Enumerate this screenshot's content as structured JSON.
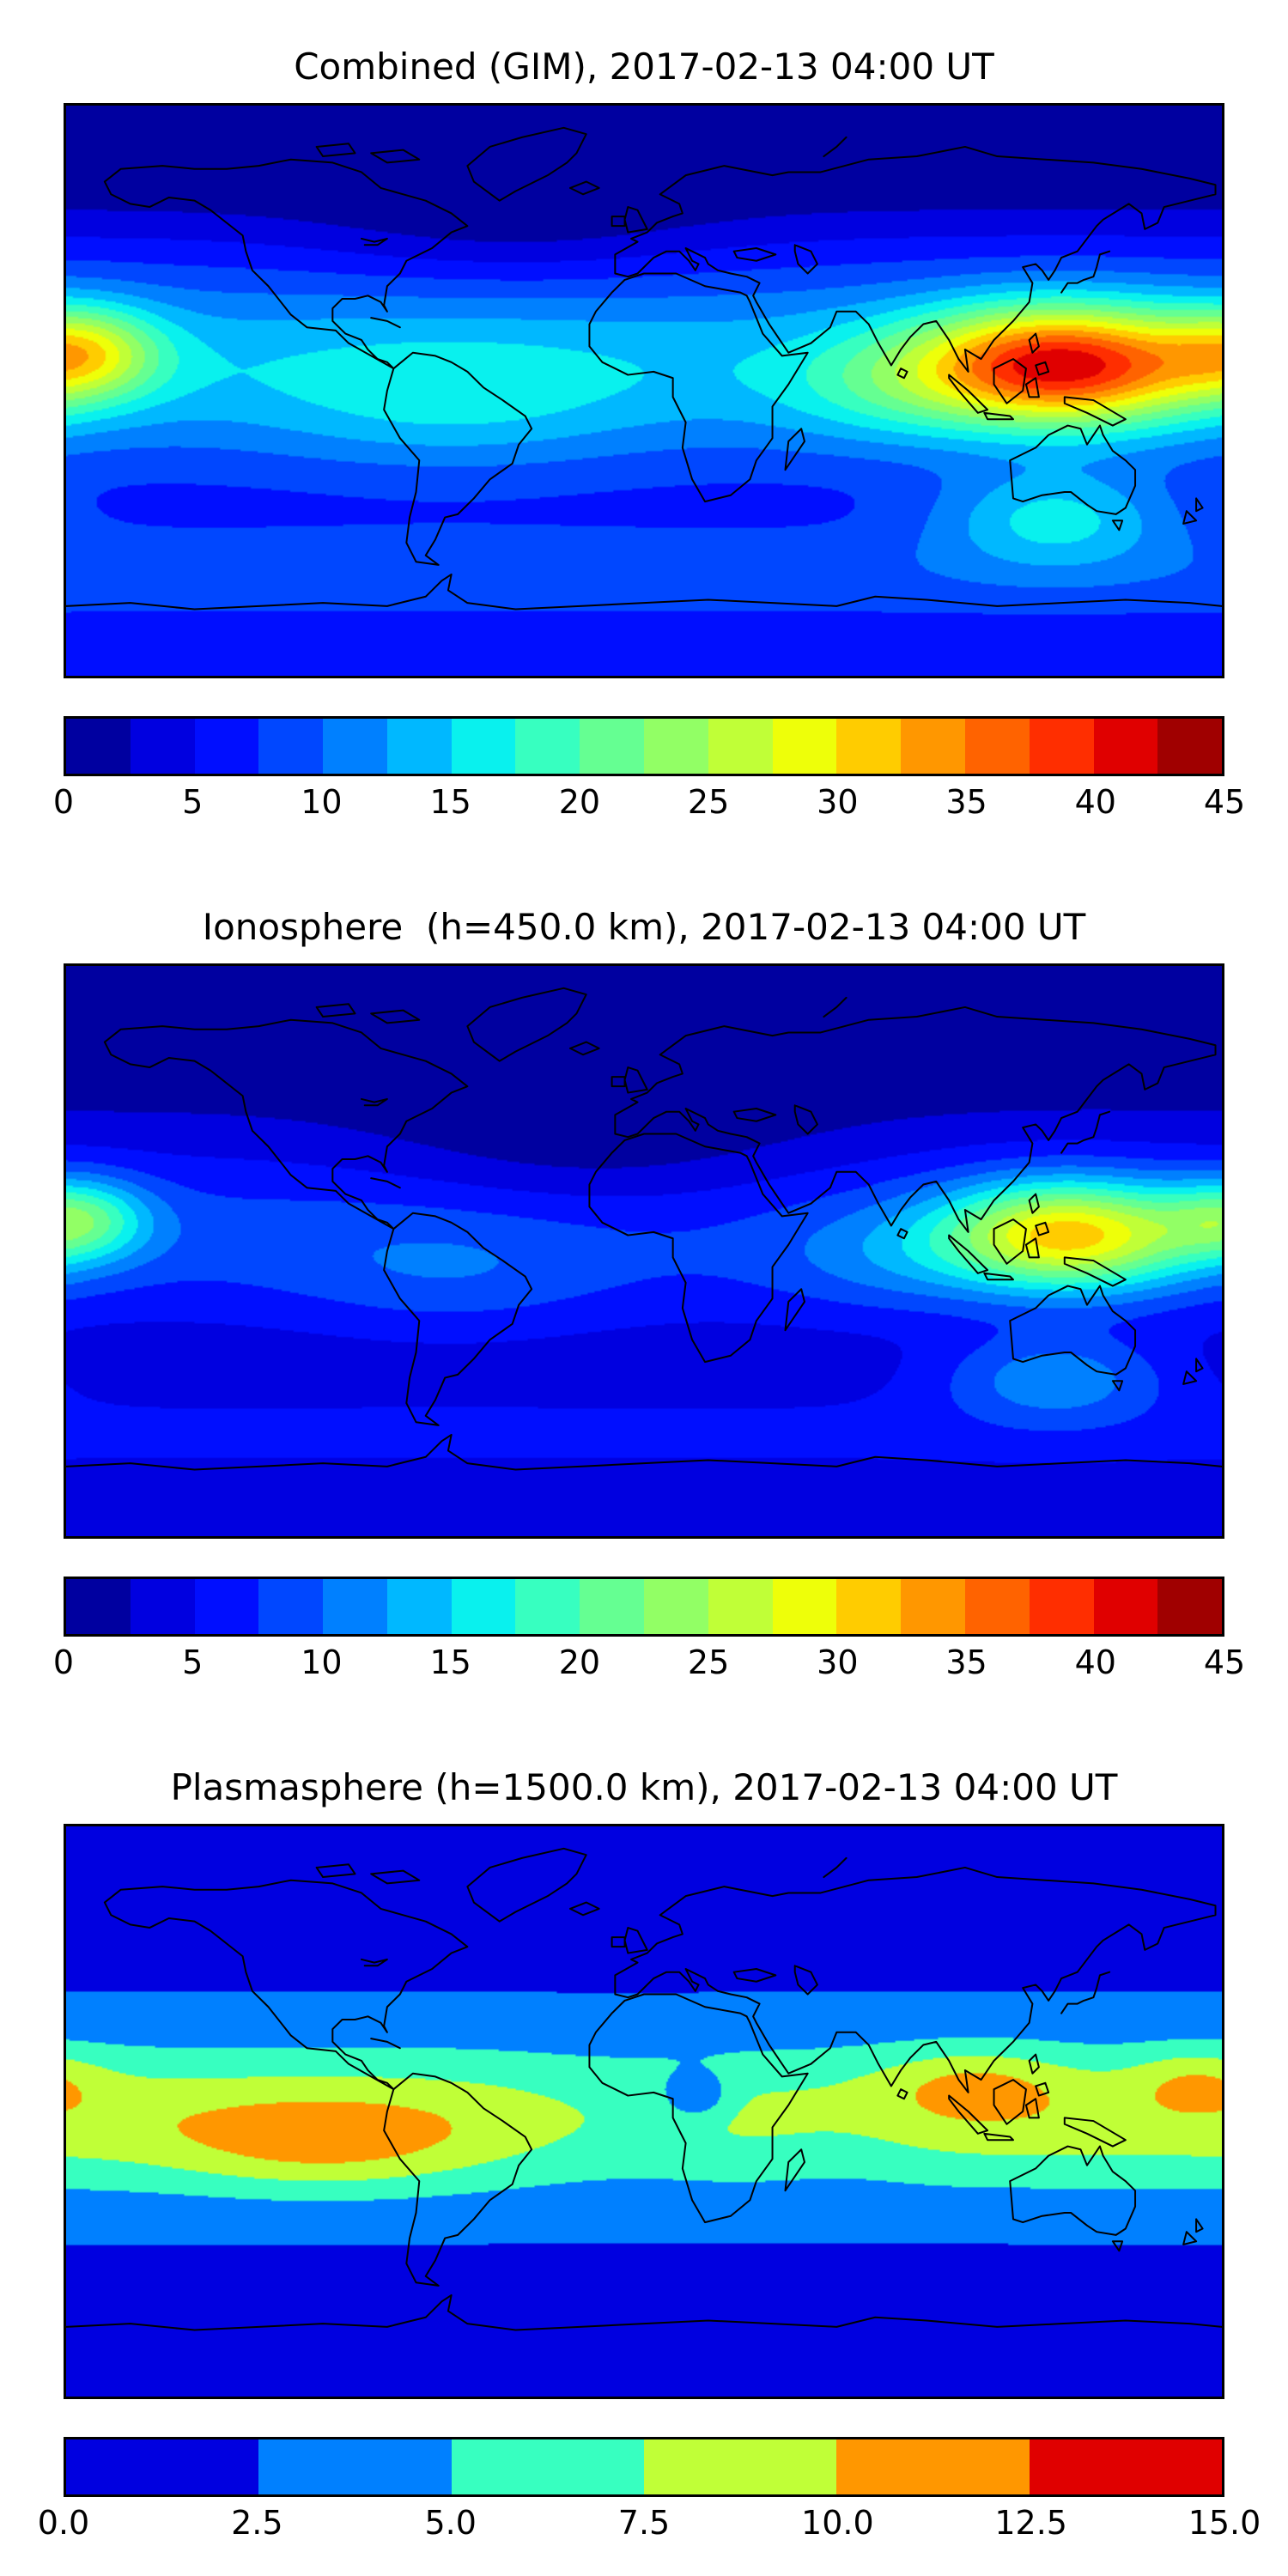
{
  "figure": {
    "background": "#ffffff",
    "panels": [
      {
        "title": "Combined (GIM), 2017-02-13 04:00 UT",
        "colorbar_ticks": [
          "0",
          "5",
          "10",
          "15",
          "20",
          "25",
          "30",
          "35",
          "40",
          "45"
        ]
      },
      {
        "title": "Ionosphere  (h=450.0 km), 2017-02-13 04:00 UT",
        "colorbar_ticks": [
          "0",
          "5",
          "10",
          "15",
          "20",
          "25",
          "30",
          "35",
          "40",
          "45"
        ]
      },
      {
        "title": "Plasmasphere (h=1500.0 km), 2017-02-13 04:00 UT",
        "colorbar_ticks": [
          "0.0",
          "2.5",
          "5.0",
          "7.5",
          "10.0",
          "12.5",
          "15.0"
        ]
      }
    ]
  },
  "chart_data": [
    {
      "type": "heatmap",
      "title": "Combined (GIM), 2017-02-13 04:00 UT",
      "colormap": "jet",
      "projection": "equirectangular world map, lon -180..180, lat 90..-90",
      "value_range": [
        0,
        45
      ],
      "contour_step": 2.5,
      "colorbar_ticks": [
        0,
        5,
        10,
        15,
        20,
        25,
        30,
        35,
        40,
        45
      ],
      "features": [
        "Maximum ~40-42 over Southeast Asia / western Pacific (lon 110-165, lat 0-15)",
        "Secondary maximum ~30-32 at left map edge, eastern Pacific (lat ~5-18)",
        "Minimum <2.5 at high northern latitudes and over North Atlantic",
        "Cyan low-latitude band ~12-20; lighter blue band near -55 latitude"
      ],
      "field_model": {
        "base": 5,
        "bands": [
          {
            "lat": 8,
            "sigma": 22,
            "amp": 9
          },
          {
            "lat": 72,
            "sigma": 16,
            "amp": -5
          },
          {
            "lat": -58,
            "sigma": 12,
            "amp": 4
          }
        ],
        "blobs": [
          {
            "lon": 130,
            "lat": 8,
            "slon": 32,
            "slat": 13,
            "amp": 28,
            "note": "SE Asia / W Pacific max"
          },
          {
            "lon": -174,
            "lat": 12,
            "slon": 16,
            "slat": 10,
            "amp": 13,
            "note": "E Pacific max at left edge"
          },
          {
            "lon": 128,
            "lat": -40,
            "slon": 26,
            "slat": 11,
            "amp": 9,
            "note": "cyan patch south of Australia"
          },
          {
            "lon": -40,
            "lat": 50,
            "slon": 45,
            "slat": 13,
            "amp": -3,
            "note": "dark N Atlantic depression"
          },
          {
            "lon": -60,
            "lat": -5,
            "slon": 40,
            "slat": 15,
            "amp": 4,
            "note": "South America equatorial cyan"
          },
          {
            "lon": 75,
            "lat": 0,
            "slon": 25,
            "slat": 12,
            "amp": 4,
            "note": "Indian Ocean cyan"
          }
        ]
      }
    },
    {
      "type": "heatmap",
      "title": "Ionosphere  (h=450.0 km), 2017-02-13 04:00 UT",
      "colormap": "jet",
      "projection": "equirectangular world map, lon -180..180, lat 90..-90",
      "value_range": [
        0,
        45
      ],
      "contour_step": 2.5,
      "colorbar_ticks": [
        0,
        5,
        10,
        15,
        20,
        25,
        30,
        35,
        40,
        45
      ],
      "features": [
        "Same morphology as GIM but weaker: max ~30-32 (yellow) over SE Asia / W Pacific",
        "Left-edge secondary max ~24 (yellow-green)",
        "Very low (<2.5) over North America, North Atlantic, Europe, Sahara",
        "Cyan patch ~12 south of Australia"
      ],
      "field_model": {
        "base": 2.5,
        "bands": [
          {
            "lat": 5,
            "sigma": 20,
            "amp": 6
          },
          {
            "lat": 70,
            "sigma": 18,
            "amp": -2.5
          },
          {
            "lat": -58,
            "sigma": 12,
            "amp": 3
          }
        ],
        "blobs": [
          {
            "lon": 132,
            "lat": 5,
            "slon": 28,
            "slat": 12,
            "amp": 23,
            "note": "SE Asia yellow max"
          },
          {
            "lon": -176,
            "lat": 10,
            "slon": 15,
            "slat": 9,
            "amp": 12,
            "note": "left-edge secondary max"
          },
          {
            "lon": 128,
            "lat": -40,
            "slon": 25,
            "slat": 10,
            "amp": 8,
            "note": "south of Australia cyan"
          },
          {
            "lon": -15,
            "lat": 32,
            "slon": 48,
            "slat": 20,
            "amp": -3.5,
            "note": "dark Atlantic/Sahara/Europe region"
          },
          {
            "lon": 75,
            "lat": -3,
            "slon": 25,
            "slat": 12,
            "amp": 3,
            "note": "Indian Ocean"
          },
          {
            "lon": -60,
            "lat": -8,
            "slon": 35,
            "slat": 14,
            "amp": 3,
            "note": "South America"
          }
        ]
      }
    },
    {
      "type": "heatmap",
      "title": "Plasmasphere (h=1500.0 km), 2017-02-13 04:00 UT",
      "colormap": "jet",
      "projection": "equirectangular world map, lon -180..180, lat 90..-90",
      "value_range": [
        0,
        15
      ],
      "contour_step": 2.5,
      "colorbar_ticks": [
        0.0,
        2.5,
        5.0,
        7.5,
        10.0,
        12.5,
        15.0
      ],
      "features": [
        "Smooth low-latitude band ~7.5-10 (yellow-green) spanning all longitudes",
        "Orange maxima ~11-12 over eastern Pacific / South America and over Philippines region",
        "Small low spot ~3-4 over central Africa",
        "Cyan over equatorial Atlantic and Indian Ocean; <2.5 poleward of about ±50 latitude"
      ],
      "field_model": {
        "base": 1.2,
        "bands": [
          {
            "lat": -2,
            "sigma": 30,
            "amp": 2.8
          },
          {
            "lat": -2,
            "sigma": 15,
            "amp": 5
          }
        ],
        "blobs": [
          {
            "lon": -100,
            "lat": -11,
            "slon": 32,
            "slat": 10,
            "amp": 3.6,
            "note": "orange max E Pacific / S America"
          },
          {
            "lon": 103,
            "lat": 9,
            "slon": 20,
            "slat": 8,
            "amp": 3.4,
            "note": "orange max SE Asia"
          },
          {
            "lon": 172,
            "lat": 10,
            "slon": 14,
            "slat": 7,
            "amp": 3.0,
            "note": "orange spot near right edge"
          },
          {
            "lon": 16,
            "lat": 5,
            "slon": 7,
            "slat": 5,
            "amp": -4.5,
            "note": "small blue dip over central Africa"
          },
          {
            "lon": -5,
            "lat": -2,
            "slon": 28,
            "slat": 14,
            "amp": -1.8,
            "note": "Atlantic band weaker (cyan)"
          },
          {
            "lon": 62,
            "lat": -8,
            "slon": 20,
            "slat": 12,
            "amp": -1.2,
            "note": "Indian Ocean slightly weaker"
          }
        ]
      }
    }
  ]
}
